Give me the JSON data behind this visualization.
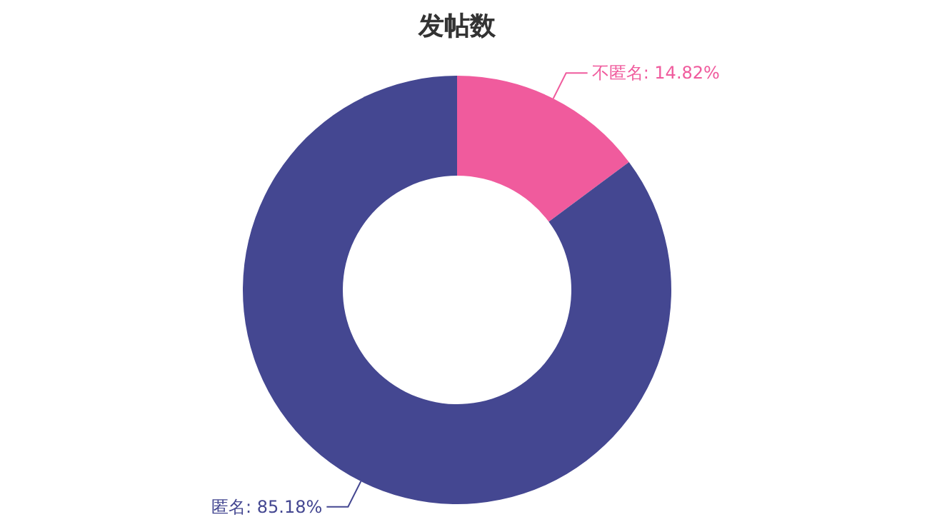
{
  "chart_data": {
    "type": "donut",
    "title": "发帖数",
    "categories": [
      "不匿名",
      "匿名"
    ],
    "values": [
      14.82,
      85.18
    ],
    "value_labels": [
      "14.82%",
      "85.18%"
    ],
    "colors": [
      "#f05b9d",
      "#444791"
    ]
  }
}
